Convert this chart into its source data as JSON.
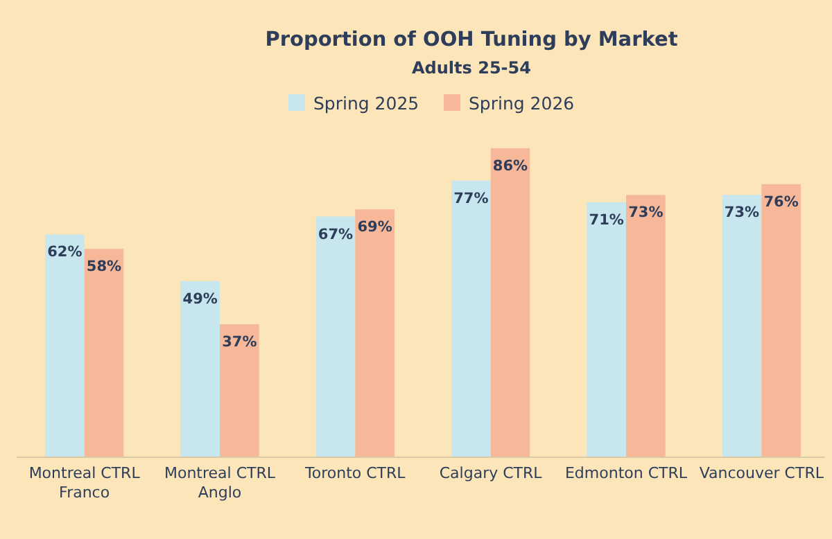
{
  "chart_data": {
    "type": "bar",
    "title": "Proportion of OOH Tuning by Market",
    "subtitle": "Adults 25-54",
    "categories": [
      "Montreal CTRL Franco",
      "Montreal CTRL Anglo",
      "Toronto CTRL",
      "Calgary CTRL",
      "Edmonton CTRL",
      "Vancouver CTRL"
    ],
    "series": [
      {
        "name": "Spring 2025",
        "color": "#c8e6ee",
        "values": [
          62,
          49,
          67,
          77,
          71,
          73
        ],
        "value_labels": [
          "62%",
          "49%",
          "67%",
          "77%",
          "71%",
          "73%"
        ]
      },
      {
        "name": "Spring 2026",
        "color": "#f6b899",
        "values": [
          58,
          37,
          69,
          86,
          73,
          76
        ],
        "value_labels": [
          "58%",
          "37%",
          "69%",
          "86%",
          "73%",
          "76%"
        ]
      }
    ],
    "legend": "top"
  }
}
